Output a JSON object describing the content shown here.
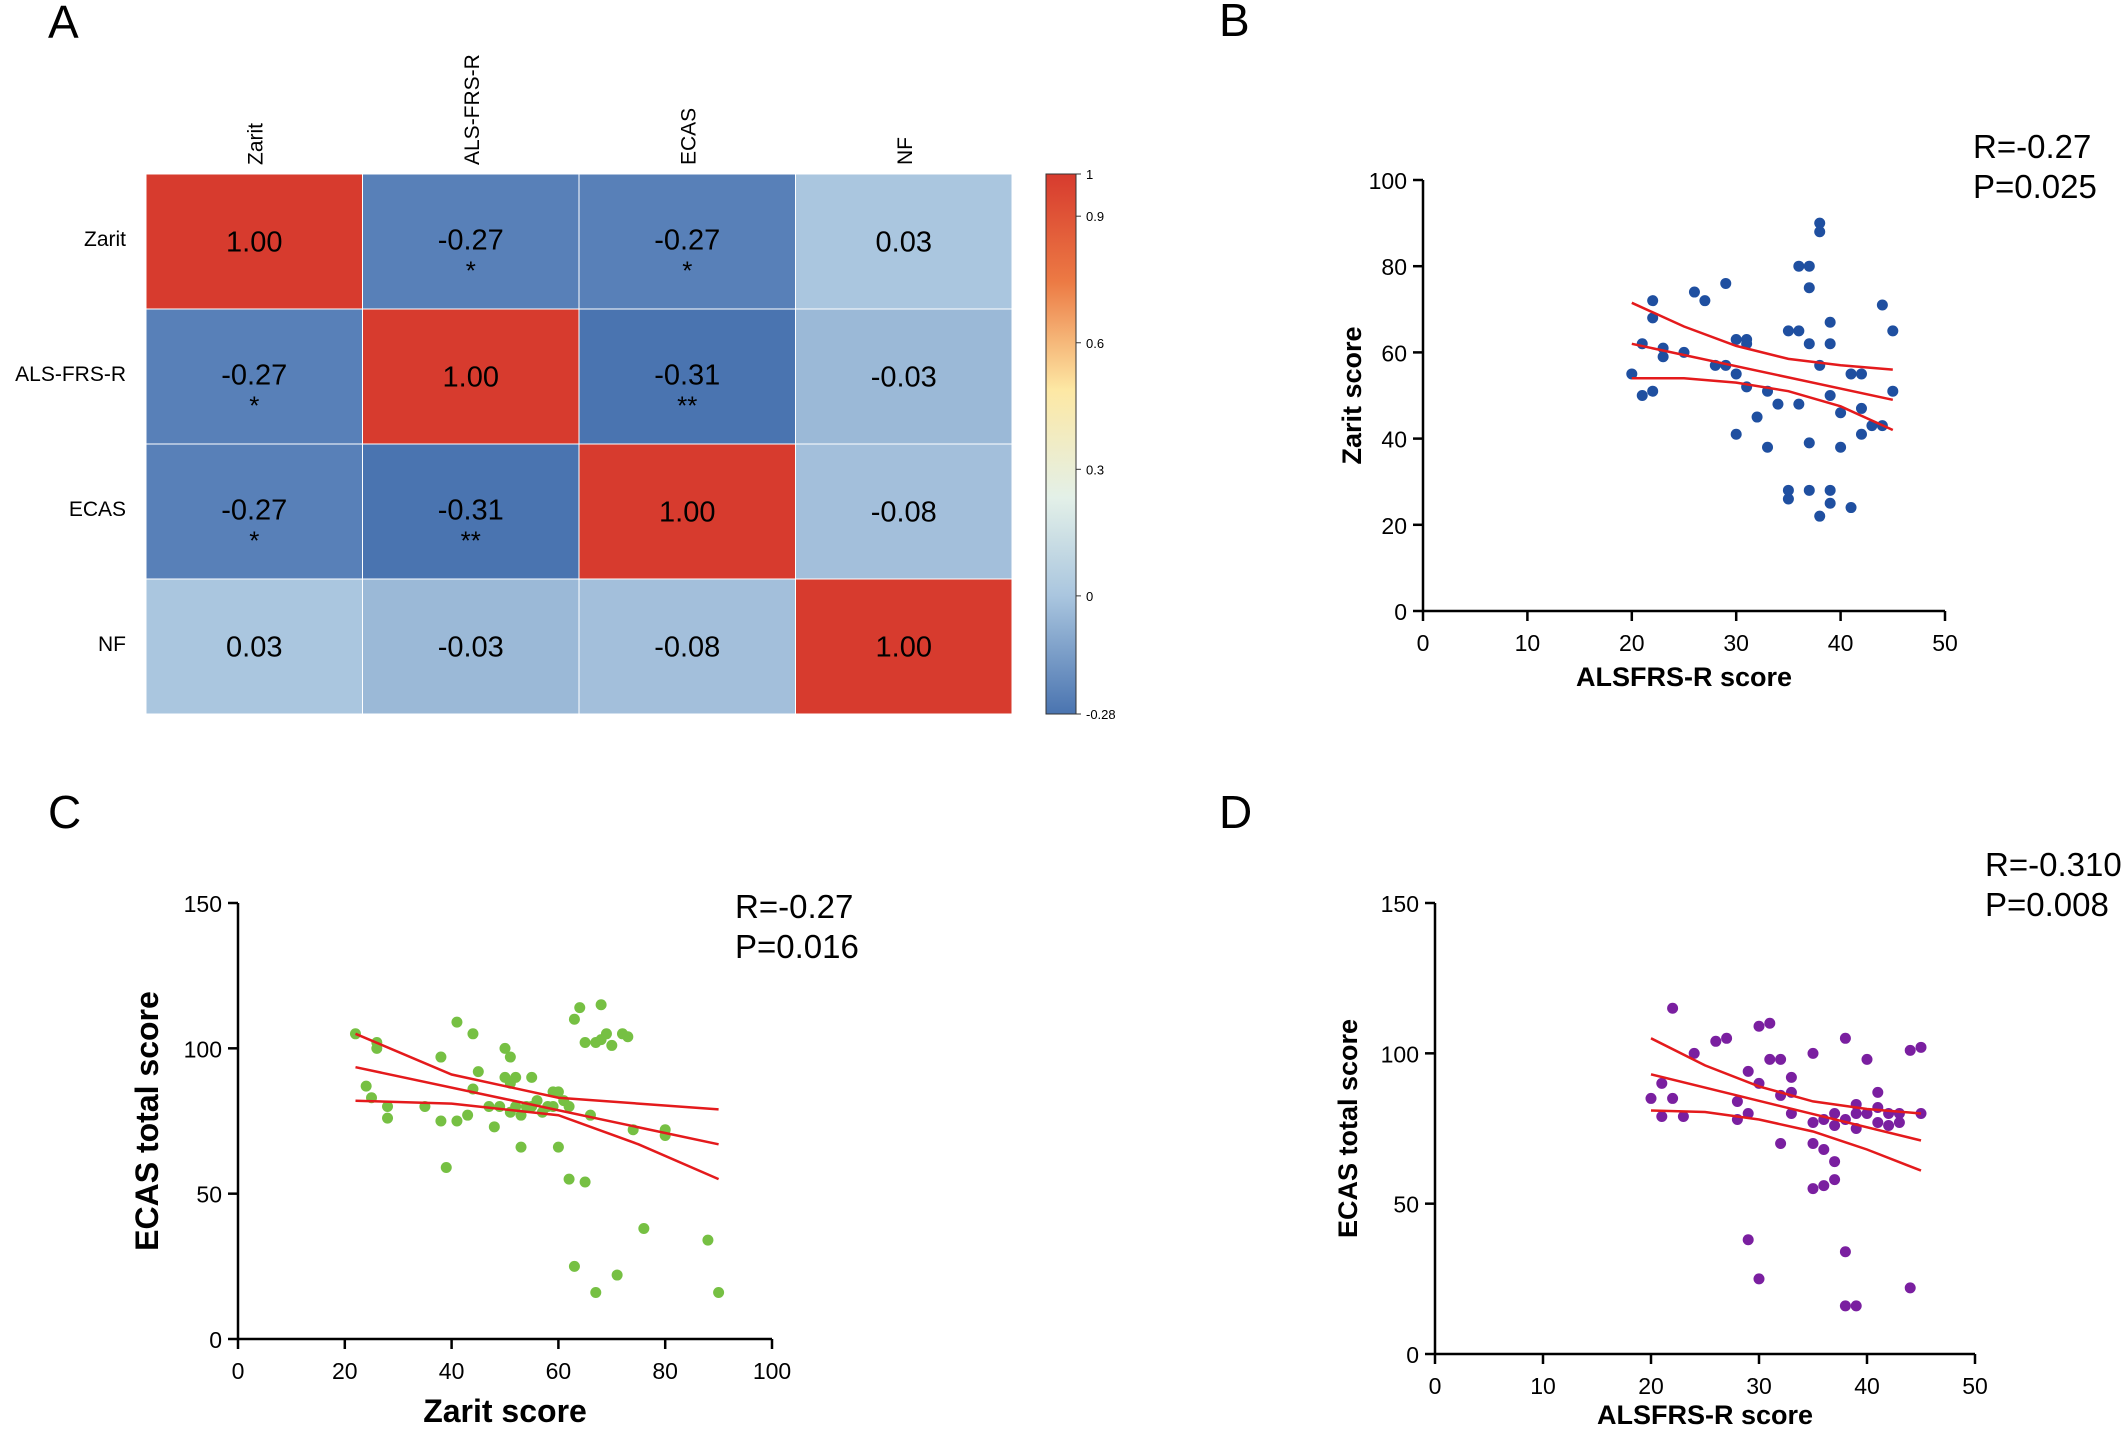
{
  "panel_labels": [
    "A",
    "B",
    "C",
    "D"
  ],
  "colors": {
    "heat_high": "#d73b2e",
    "heat_mid": "#fffbd0",
    "heat_low": "#4a74b0",
    "fit_line": "#e41a1c",
    "scatter_b": "#1f4fa0",
    "scatter_c": "#76c043",
    "scatter_d": "#7a1fa0"
  },
  "chart_data": [
    {
      "type": "heatmap",
      "panel": "A",
      "row_labels": [
        "Zarit",
        "ALS-FRS-R",
        "ECAS",
        "NF"
      ],
      "col_labels": [
        "Zarit",
        "ALS-FRS-R",
        "ECAS",
        "NF"
      ],
      "values": [
        [
          1.0,
          -0.27,
          -0.27,
          0.03
        ],
        [
          -0.27,
          1.0,
          -0.31,
          -0.03
        ],
        [
          -0.27,
          -0.31,
          1.0,
          -0.08
        ],
        [
          0.03,
          -0.03,
          -0.08,
          1.0
        ]
      ],
      "value_labels": [
        [
          "1.00",
          "-0.27",
          "-0.27",
          "0.03"
        ],
        [
          "-0.27",
          "1.00",
          "-0.31",
          "-0.03"
        ],
        [
          "-0.27",
          "-0.31",
          "1.00",
          "-0.08"
        ],
        [
          "0.03",
          "-0.03",
          "-0.08",
          "1.00"
        ]
      ],
      "significance": [
        [
          "",
          "*",
          "*",
          ""
        ],
        [
          "*",
          "",
          "**",
          ""
        ],
        [
          "*",
          "**",
          "",
          ""
        ],
        [
          "",
          "",
          "",
          ""
        ]
      ],
      "colorbar": {
        "min": -0.28,
        "max": 1,
        "ticks": [
          1,
          0.9,
          0.6,
          0.3,
          0,
          -0.28
        ],
        "tick_labels": [
          "1",
          "0.9",
          "0.6",
          "0.3",
          "0",
          "-0.28"
        ]
      }
    },
    {
      "type": "scatter",
      "panel": "B",
      "xlabel": "ALSFRS-R score",
      "ylabel": "Zarit score",
      "xlim": [
        0,
        50
      ],
      "ylim": [
        0,
        100
      ],
      "xticks": [
        0,
        10,
        20,
        30,
        40,
        50
      ],
      "yticks": [
        0,
        20,
        40,
        60,
        80,
        100
      ],
      "annotation": [
        "R=-0.27",
        "P=0.025"
      ],
      "points": [
        [
          20,
          55
        ],
        [
          21,
          62
        ],
        [
          21,
          50
        ],
        [
          22,
          51
        ],
        [
          22,
          68
        ],
        [
          22,
          72
        ],
        [
          23,
          59
        ],
        [
          23,
          61
        ],
        [
          25,
          60
        ],
        [
          26,
          74
        ],
        [
          27,
          72
        ],
        [
          28,
          57
        ],
        [
          29,
          57
        ],
        [
          29,
          76
        ],
        [
          30,
          41
        ],
        [
          30,
          63
        ],
        [
          30,
          55
        ],
        [
          31,
          52
        ],
        [
          31,
          62
        ],
        [
          31,
          63
        ],
        [
          32,
          45
        ],
        [
          33,
          38
        ],
        [
          33,
          51
        ],
        [
          34,
          48
        ],
        [
          35,
          26
        ],
        [
          35,
          28
        ],
        [
          35,
          65
        ],
        [
          36,
          65
        ],
        [
          36,
          80
        ],
        [
          36,
          48
        ],
        [
          37,
          80
        ],
        [
          37,
          75
        ],
        [
          37,
          39
        ],
        [
          37,
          28
        ],
        [
          37,
          62
        ],
        [
          38,
          22
        ],
        [
          38,
          88
        ],
        [
          38,
          90
        ],
        [
          38,
          57
        ],
        [
          39,
          25
        ],
        [
          39,
          28
        ],
        [
          39,
          50
        ],
        [
          39,
          62
        ],
        [
          39,
          67
        ],
        [
          40,
          38
        ],
        [
          40,
          46
        ],
        [
          41,
          24
        ],
        [
          41,
          55
        ],
        [
          42,
          41
        ],
        [
          42,
          47
        ],
        [
          42,
          55
        ],
        [
          43,
          43
        ],
        [
          44,
          43
        ],
        [
          44,
          71
        ],
        [
          45,
          51
        ],
        [
          45,
          65
        ]
      ],
      "fit": {
        "x": [
          20,
          45
        ],
        "y": [
          62,
          49
        ]
      },
      "ci_upper": {
        "x": [
          20,
          25,
          30,
          35,
          40,
          45
        ],
        "y": [
          71.5,
          66,
          61.5,
          58.5,
          57,
          56
        ]
      },
      "ci_lower": {
        "x": [
          20,
          25,
          30,
          35,
          40,
          45
        ],
        "y": [
          54,
          54,
          53,
          51,
          47.5,
          42
        ]
      }
    },
    {
      "type": "scatter",
      "panel": "C",
      "xlabel": "Zarit score",
      "ylabel": "ECAS total score",
      "xlim": [
        0,
        100
      ],
      "ylim": [
        0,
        150
      ],
      "xticks": [
        0,
        20,
        40,
        60,
        80,
        100
      ],
      "yticks": [
        0,
        50,
        100,
        150
      ],
      "annotation": [
        "R=-0.27",
        "P=0.016"
      ],
      "points": [
        [
          22,
          105
        ],
        [
          24,
          87
        ],
        [
          25,
          83
        ],
        [
          26,
          100
        ],
        [
          26,
          102
        ],
        [
          28,
          80
        ],
        [
          28,
          76
        ],
        [
          35,
          80
        ],
        [
          38,
          75
        ],
        [
          38,
          97
        ],
        [
          39,
          59
        ],
        [
          41,
          109
        ],
        [
          41,
          75
        ],
        [
          43,
          77
        ],
        [
          44,
          86
        ],
        [
          44,
          105
        ],
        [
          45,
          92
        ],
        [
          47,
          80
        ],
        [
          48,
          73
        ],
        [
          49,
          80
        ],
        [
          50,
          100
        ],
        [
          50,
          90
        ],
        [
          51,
          78
        ],
        [
          51,
          88
        ],
        [
          51,
          97
        ],
        [
          52,
          80
        ],
        [
          52,
          90
        ],
        [
          53,
          66
        ],
        [
          53,
          77
        ],
        [
          54,
          80
        ],
        [
          55,
          80
        ],
        [
          55,
          90
        ],
        [
          56,
          82
        ],
        [
          57,
          78
        ],
        [
          58,
          80
        ],
        [
          59,
          85
        ],
        [
          59,
          80
        ],
        [
          60,
          66
        ],
        [
          60,
          85
        ],
        [
          61,
          82
        ],
        [
          62,
          55
        ],
        [
          62,
          80
        ],
        [
          63,
          25
        ],
        [
          63,
          110
        ],
        [
          64,
          114
        ],
        [
          65,
          54
        ],
        [
          65,
          102
        ],
        [
          66,
          77
        ],
        [
          67,
          102
        ],
        [
          67,
          16
        ],
        [
          68,
          115
        ],
        [
          68,
          103
        ],
        [
          69,
          105
        ],
        [
          70,
          101
        ],
        [
          71,
          22
        ],
        [
          72,
          105
        ],
        [
          73,
          104
        ],
        [
          74,
          72
        ],
        [
          76,
          38
        ],
        [
          80,
          72
        ],
        [
          80,
          70
        ],
        [
          88,
          34
        ],
        [
          90,
          16
        ]
      ],
      "fit": {
        "x": [
          22,
          90
        ],
        "y": [
          93.5,
          67
        ]
      },
      "ci_upper": {
        "x": [
          22,
          40,
          60,
          75,
          90
        ],
        "y": [
          105,
          91,
          83,
          81,
          79
        ]
      },
      "ci_lower": {
        "x": [
          22,
          40,
          60,
          75,
          90
        ],
        "y": [
          82,
          81,
          77,
          67,
          55
        ]
      }
    },
    {
      "type": "scatter",
      "panel": "D",
      "xlabel": "ALSFRS-R score",
      "ylabel": "ECAS total score",
      "xlim": [
        0,
        50
      ],
      "ylim": [
        0,
        150
      ],
      "xticks": [
        0,
        10,
        20,
        30,
        40,
        50
      ],
      "yticks": [
        0,
        50,
        100,
        150
      ],
      "annotation": [
        "R=-0.310",
        "P=0.008"
      ],
      "points": [
        [
          20,
          85
        ],
        [
          21,
          79
        ],
        [
          21,
          90
        ],
        [
          22,
          85
        ],
        [
          22,
          115
        ],
        [
          23,
          79
        ],
        [
          24,
          100
        ],
        [
          26,
          104
        ],
        [
          27,
          105
        ],
        [
          28,
          78
        ],
        [
          28,
          84
        ],
        [
          29,
          80
        ],
        [
          29,
          38
        ],
        [
          29,
          94
        ],
        [
          30,
          25
        ],
        [
          30,
          109
        ],
        [
          30,
          90
        ],
        [
          31,
          110
        ],
        [
          31,
          98
        ],
        [
          32,
          86
        ],
        [
          32,
          70
        ],
        [
          32,
          98
        ],
        [
          33,
          87
        ],
        [
          33,
          80
        ],
        [
          33,
          92
        ],
        [
          35,
          55
        ],
        [
          35,
          100
        ],
        [
          35,
          77
        ],
        [
          35,
          70
        ],
        [
          36,
          56
        ],
        [
          36,
          68
        ],
        [
          36,
          78
        ],
        [
          37,
          64
        ],
        [
          37,
          58
        ],
        [
          37,
          80
        ],
        [
          37,
          76
        ],
        [
          38,
          16
        ],
        [
          38,
          34
        ],
        [
          38,
          78
        ],
        [
          38,
          105
        ],
        [
          39,
          16
        ],
        [
          39,
          80
        ],
        [
          39,
          83
        ],
        [
          39,
          75
        ],
        [
          40,
          80
        ],
        [
          40,
          98
        ],
        [
          41,
          77
        ],
        [
          41,
          82
        ],
        [
          41,
          87
        ],
        [
          42,
          76
        ],
        [
          42,
          80
        ],
        [
          43,
          77
        ],
        [
          43,
          80
        ],
        [
          44,
          22
        ],
        [
          44,
          101
        ],
        [
          45,
          80
        ],
        [
          45,
          102
        ]
      ],
      "fit": {
        "x": [
          20,
          45
        ],
        "y": [
          93,
          71
        ]
      },
      "ci_upper": {
        "x": [
          20,
          25,
          30,
          35,
          40,
          45
        ],
        "y": [
          105,
          96,
          89,
          84,
          81.5,
          80
        ]
      },
      "ci_lower": {
        "x": [
          20,
          25,
          30,
          35,
          40,
          45
        ],
        "y": [
          81,
          80.5,
          78,
          74,
          68,
          61
        ]
      }
    }
  ]
}
